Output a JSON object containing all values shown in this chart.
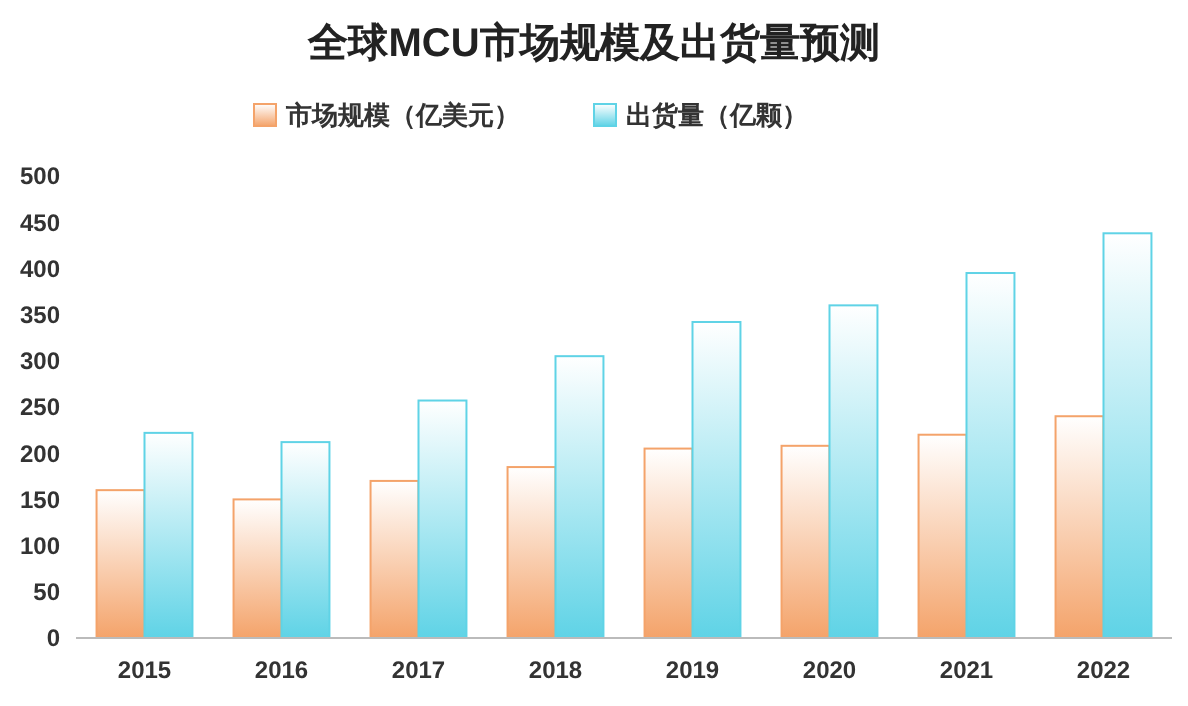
{
  "chart_data": {
    "type": "bar",
    "title": "全球MCU市场规模及出货量预测",
    "categories": [
      "2015",
      "2016",
      "2017",
      "2018",
      "2019",
      "2020",
      "2021",
      "2022"
    ],
    "series": [
      {
        "name": "市场规模（亿美元）",
        "color": "#f4a36a",
        "values": [
          160,
          150,
          170,
          185,
          205,
          208,
          220,
          240
        ]
      },
      {
        "name": "出货量（亿颗）",
        "color": "#5fd3e6",
        "values": [
          222,
          212,
          257,
          305,
          342,
          360,
          395,
          438
        ]
      }
    ],
    "ylim": [
      0,
      500
    ],
    "yticks": [
      0,
      50,
      100,
      150,
      200,
      250,
      300,
      350,
      400,
      450,
      500
    ],
    "grid": false,
    "legend": "top"
  }
}
